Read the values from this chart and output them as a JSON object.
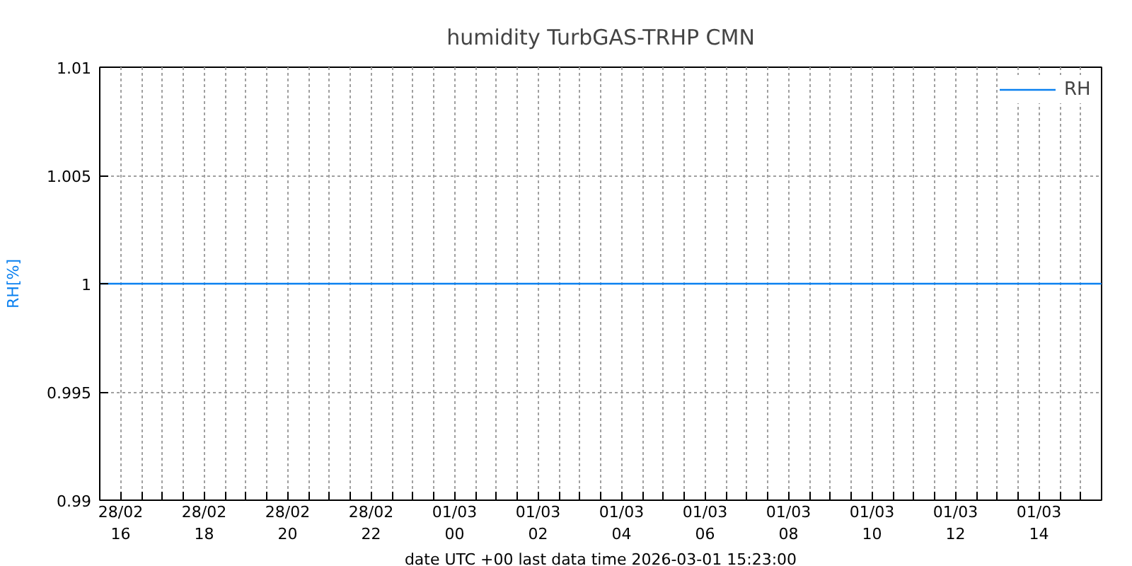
{
  "chart_data": {
    "type": "line",
    "title": "humidity TurbGAS-TRHP CMN",
    "xlabel": "date UTC +00 last data time 2026-03-01 15:23:00",
    "ylabel": "RH[%]",
    "series": [
      {
        "name": "RH",
        "color": "#0a80f0",
        "x": [
          "2026-02-28T15:30",
          "2026-03-01T15:30"
        ],
        "values": [
          1,
          1
        ]
      }
    ],
    "xlim": [
      "2026-02-28T15:30",
      "2026-03-01T15:30"
    ],
    "xticks": [
      {
        "value": "2026-02-28T16:00",
        "label": "28/02\n16"
      },
      {
        "value": "2026-02-28T16:30",
        "label": null
      },
      {
        "value": "2026-02-28T17:00",
        "label": null
      },
      {
        "value": "2026-02-28T17:30",
        "label": null
      },
      {
        "value": "2026-02-28T18:00",
        "label": "28/02\n18"
      },
      {
        "value": "2026-02-28T18:30",
        "label": null
      },
      {
        "value": "2026-02-28T19:00",
        "label": null
      },
      {
        "value": "2026-02-28T19:30",
        "label": null
      },
      {
        "value": "2026-02-28T20:00",
        "label": "28/02\n20"
      },
      {
        "value": "2026-02-28T20:30",
        "label": null
      },
      {
        "value": "2026-02-28T21:00",
        "label": null
      },
      {
        "value": "2026-02-28T21:30",
        "label": null
      },
      {
        "value": "2026-02-28T22:00",
        "label": "28/02\n22"
      },
      {
        "value": "2026-02-28T22:30",
        "label": null
      },
      {
        "value": "2026-02-28T23:00",
        "label": null
      },
      {
        "value": "2026-02-28T23:30",
        "label": null
      },
      {
        "value": "2026-03-01T00:00",
        "label": "01/03\n00"
      },
      {
        "value": "2026-03-01T00:30",
        "label": null
      },
      {
        "value": "2026-03-01T01:00",
        "label": null
      },
      {
        "value": "2026-03-01T01:30",
        "label": null
      },
      {
        "value": "2026-03-01T02:00",
        "label": "01/03\n02"
      },
      {
        "value": "2026-03-01T02:30",
        "label": null
      },
      {
        "value": "2026-03-01T03:00",
        "label": null
      },
      {
        "value": "2026-03-01T03:30",
        "label": null
      },
      {
        "value": "2026-03-01T04:00",
        "label": "01/03\n04"
      },
      {
        "value": "2026-03-01T04:30",
        "label": null
      },
      {
        "value": "2026-03-01T05:00",
        "label": null
      },
      {
        "value": "2026-03-01T05:30",
        "label": null
      },
      {
        "value": "2026-03-01T06:00",
        "label": "01/03\n06"
      },
      {
        "value": "2026-03-01T06:30",
        "label": null
      },
      {
        "value": "2026-03-01T07:00",
        "label": null
      },
      {
        "value": "2026-03-01T07:30",
        "label": null
      },
      {
        "value": "2026-03-01T08:00",
        "label": "01/03\n08"
      },
      {
        "value": "2026-03-01T08:30",
        "label": null
      },
      {
        "value": "2026-03-01T09:00",
        "label": null
      },
      {
        "value": "2026-03-01T09:30",
        "label": null
      },
      {
        "value": "2026-03-01T10:00",
        "label": "01/03\n10"
      },
      {
        "value": "2026-03-01T10:30",
        "label": null
      },
      {
        "value": "2026-03-01T11:00",
        "label": null
      },
      {
        "value": "2026-03-01T11:30",
        "label": null
      },
      {
        "value": "2026-03-01T12:00",
        "label": "01/03\n12"
      },
      {
        "value": "2026-03-01T12:30",
        "label": null
      },
      {
        "value": "2026-03-01T13:00",
        "label": null
      },
      {
        "value": "2026-03-01T13:30",
        "label": null
      },
      {
        "value": "2026-03-01T14:00",
        "label": "01/03\n14"
      },
      {
        "value": "2026-03-01T14:30",
        "label": null
      },
      {
        "value": "2026-03-01T15:00",
        "label": null
      }
    ],
    "ylim": [
      0.99,
      1.01
    ],
    "yticks": [
      0.99,
      0.995,
      1,
      1.005,
      1.01
    ],
    "grid": true,
    "legend": "top right"
  }
}
